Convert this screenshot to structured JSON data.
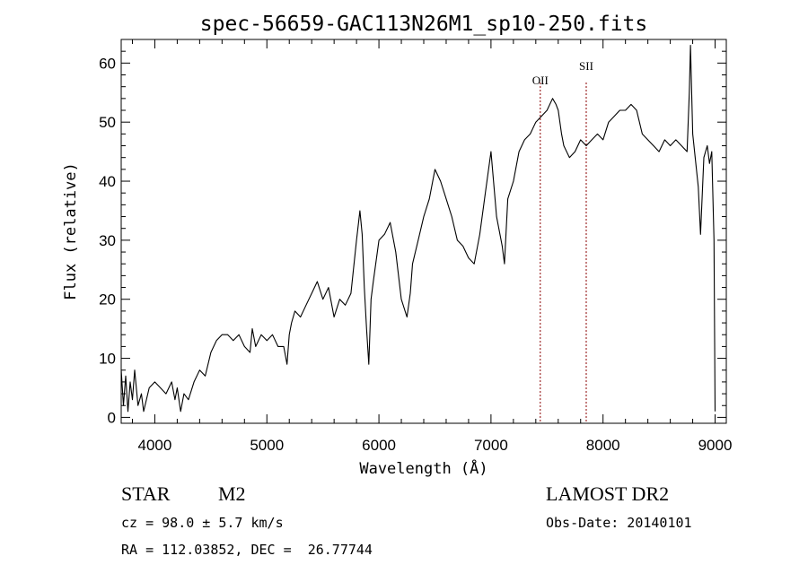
{
  "chart_data": {
    "type": "line",
    "title": "spec-56659-GAC113N26M1_sp10-250.fits",
    "xlabel": "Wavelength (Å)",
    "ylabel": "Flux (relative)",
    "xlim": [
      3700,
      9100
    ],
    "ylim": [
      -1,
      64
    ],
    "x_ticks": [
      4000,
      5000,
      6000,
      7000,
      8000,
      9000
    ],
    "y_ticks": [
      0,
      10,
      20,
      30,
      40,
      50,
      60
    ],
    "grid": false,
    "series": [
      {
        "x": [
          3700,
          3720,
          3740,
          3760,
          3780,
          3800,
          3820,
          3850,
          3880,
          3900,
          3950,
          4000,
          4050,
          4100,
          4150,
          4180,
          4200,
          4230,
          4260,
          4300,
          4350,
          4400,
          4450,
          4500,
          4550,
          4600,
          4650,
          4700,
          4750,
          4800,
          4850,
          4870,
          4900,
          4950,
          5000,
          5050,
          5100,
          5150,
          5180,
          5200,
          5220,
          5250,
          5300,
          5350,
          5400,
          5450,
          5500,
          5550,
          5600,
          5650,
          5700,
          5750,
          5800,
          5830,
          5850,
          5870,
          5890,
          5910,
          5930,
          5950,
          6000,
          6050,
          6100,
          6150,
          6200,
          6250,
          6280,
          6300,
          6350,
          6400,
          6450,
          6500,
          6550,
          6600,
          6650,
          6700,
          6750,
          6800,
          6850,
          6900,
          6950,
          7000,
          7050,
          7100,
          7120,
          7150,
          7200,
          7250,
          7300,
          7350,
          7400,
          7450,
          7500,
          7550,
          7580,
          7600,
          7630,
          7650,
          7700,
          7750,
          7800,
          7850,
          7900,
          7950,
          8000,
          8050,
          8100,
          8150,
          8200,
          8250,
          8300,
          8350,
          8400,
          8450,
          8500,
          8550,
          8600,
          8650,
          8700,
          8750,
          8770,
          8780,
          8800,
          8850,
          8870,
          8900,
          8930,
          8950,
          8970,
          8990,
          9000
        ],
        "y": [
          8,
          2,
          7,
          1,
          6,
          3,
          8,
          2,
          4,
          1,
          5,
          6,
          5,
          4,
          6,
          3,
          5,
          1,
          4,
          3,
          6,
          8,
          7,
          11,
          13,
          14,
          14,
          13,
          14,
          12,
          11,
          15,
          12,
          14,
          13,
          14,
          12,
          12,
          9,
          14,
          16,
          18,
          17,
          19,
          21,
          23,
          20,
          22,
          17,
          20,
          19,
          21,
          30,
          35,
          31,
          22,
          15,
          9,
          20,
          23,
          30,
          31,
          33,
          28,
          20,
          17,
          21,
          26,
          30,
          34,
          37,
          42,
          40,
          37,
          34,
          30,
          29,
          27,
          26,
          31,
          38,
          45,
          34,
          29,
          26,
          37,
          40,
          45,
          47,
          48,
          50,
          51,
          52,
          54,
          53,
          52,
          48,
          46,
          44,
          45,
          47,
          46,
          47,
          48,
          47,
          50,
          51,
          52,
          52,
          53,
          52,
          48,
          47,
          46,
          45,
          47,
          46,
          47,
          46,
          45,
          55,
          63,
          48,
          39,
          31,
          44,
          46,
          43,
          45,
          30,
          1
        ]
      }
    ],
    "annotations": [
      {
        "label": "OII",
        "x": 7440
      },
      {
        "label": "SII",
        "x": 7850
      }
    ],
    "line_color": "#000000",
    "marker_color": "#8b0000"
  },
  "info": {
    "object_class": "STAR",
    "subclass": "M2",
    "survey": "LAMOST DR2",
    "cz": "cz = 98.0 ± 5.7 km/s",
    "obs_date": "Obs-Date: 20140101",
    "coords": "RA = 112.03852, DEC =  26.77744"
  }
}
